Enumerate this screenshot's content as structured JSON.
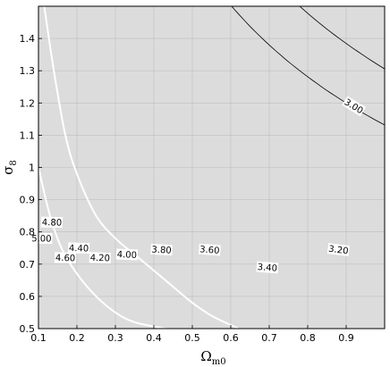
{
  "chart_data": {
    "type": "contour",
    "title": "",
    "xlabel": "Ω",
    "xlabel_sub": "m0",
    "ylabel": "σ",
    "ylabel_sub": "8",
    "xlim": [
      0.1,
      1.0
    ],
    "ylim": [
      0.5,
      1.5
    ],
    "xticks": [
      "0.1",
      "0.2",
      "0.3",
      "0.4",
      "0.5",
      "0.6",
      "0.7",
      "0.8",
      "0.9"
    ],
    "yticks": [
      "0.5",
      "0.6",
      "0.7",
      "0.8",
      "0.9",
      "1",
      "1.1",
      "1.2",
      "1.3",
      "1.4"
    ],
    "grid": true,
    "shading": "filled grayscale, light at low Ωm0 to dark at high Ωm0",
    "contour_model": "level = 3.00 at (Ωm0=0.9, σ8=1.2); each 0.20 step shifts Ωm0 · σ8^1.8 by a factor 0.773",
    "contours": [
      {
        "level": "5.00",
        "label_x": 0.108,
        "label_y": 0.78
      },
      {
        "level": "4.80",
        "label_x": 0.135,
        "label_y": 0.83
      },
      {
        "level": "4.60",
        "label_x": 0.17,
        "label_y": 0.72
      },
      {
        "level": "4.40",
        "label_x": 0.205,
        "label_y": 0.75
      },
      {
        "level": "4.20",
        "label_x": 0.26,
        "label_y": 0.72
      },
      {
        "level": "4.00",
        "label_x": 0.33,
        "label_y": 0.73
      },
      {
        "level": "3.80",
        "label_x": 0.42,
        "label_y": 0.745
      },
      {
        "level": "3.60",
        "label_x": 0.545,
        "label_y": 0.745
      },
      {
        "level": "3.40",
        "label_x": 0.695,
        "label_y": 0.69
      },
      {
        "level": "3.20",
        "label_x": 0.88,
        "label_y": 0.745
      },
      {
        "level": "3.00",
        "label_x": 0.92,
        "label_y": 1.19
      }
    ],
    "highlight_curves": [
      {
        "name": "",
        "points": [
          [
            0.115,
            1.5
          ],
          [
            0.14,
            1.3
          ],
          [
            0.17,
            1.1
          ],
          [
            0.2,
            0.98
          ],
          [
            0.25,
            0.85
          ],
          [
            0.3,
            0.78
          ],
          [
            0.35,
            0.73
          ],
          [
            0.4,
            0.68
          ],
          [
            0.45,
            0.63
          ],
          [
            0.5,
            0.58
          ],
          [
            0.55,
            0.54
          ],
          [
            0.62,
            0.5
          ]
        ]
      },
      {
        "name": "",
        "points": [
          [
            0.1,
            1.0
          ],
          [
            0.13,
            0.85
          ],
          [
            0.16,
            0.75
          ],
          [
            0.2,
            0.67
          ],
          [
            0.25,
            0.6
          ],
          [
            0.3,
            0.55
          ],
          [
            0.35,
            0.52
          ],
          [
            0.43,
            0.5
          ]
        ]
      }
    ]
  }
}
